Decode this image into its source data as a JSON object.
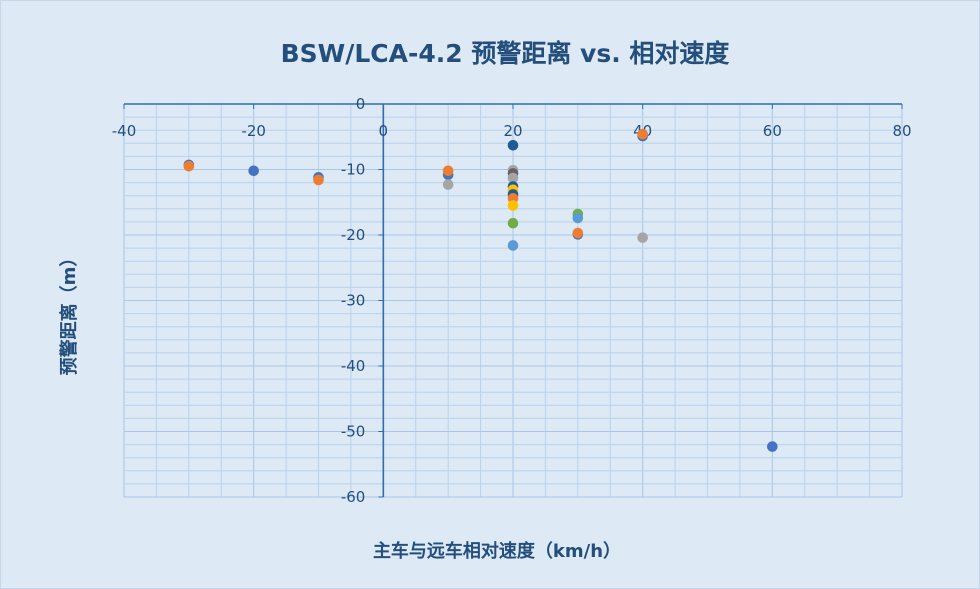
{
  "chart_data": {
    "type": "scatter",
    "title": "BSW/LCA-4.2 预警距离 vs. 相对速度",
    "xlabel": "主车与远车相对速度（km/h）",
    "ylabel": "预警距离（m）",
    "xlim": [
      -40,
      80
    ],
    "ylim": [
      -60,
      0
    ],
    "x_ticks": [
      "-40",
      "-20",
      "0",
      "20",
      "40",
      "60",
      "80"
    ],
    "y_ticks": [
      "0",
      "-10",
      "-20",
      "-30",
      "-40",
      "-50",
      "-60"
    ],
    "grid": true,
    "legend": "none",
    "colors": {
      "navy": "#1f5b95",
      "blue": "#4472c4",
      "orange": "#ed7d31",
      "gray": "#a5a5a5",
      "gold": "#ffc000",
      "lightblue": "#5b9bd5",
      "green": "#70ad47",
      "darkgray": "#636363"
    },
    "points": [
      {
        "x": -30,
        "y": -9.3,
        "color": "blue"
      },
      {
        "x": -30,
        "y": -9.5,
        "color": "orange"
      },
      {
        "x": -20,
        "y": -10.2,
        "color": "blue"
      },
      {
        "x": -10,
        "y": -11.2,
        "color": "blue"
      },
      {
        "x": -10,
        "y": -11.6,
        "color": "orange"
      },
      {
        "x": 10,
        "y": -10.8,
        "color": "blue"
      },
      {
        "x": 10,
        "y": -10.2,
        "color": "orange"
      },
      {
        "x": 10,
        "y": -12.3,
        "color": "gray"
      },
      {
        "x": 20,
        "y": -6.3,
        "color": "navy"
      },
      {
        "x": 20,
        "y": -10.1,
        "color": "gray"
      },
      {
        "x": 20,
        "y": -10.6,
        "color": "darkgray"
      },
      {
        "x": 20,
        "y": -11.3,
        "color": "gray"
      },
      {
        "x": 20,
        "y": -12.6,
        "color": "navy"
      },
      {
        "x": 20,
        "y": -13.1,
        "color": "gold"
      },
      {
        "x": 20,
        "y": -13.8,
        "color": "navy"
      },
      {
        "x": 20,
        "y": -14.4,
        "color": "orange"
      },
      {
        "x": 20,
        "y": -15.5,
        "color": "gold"
      },
      {
        "x": 20,
        "y": -18.2,
        "color": "green"
      },
      {
        "x": 20,
        "y": -21.6,
        "color": "lightblue"
      },
      {
        "x": 30,
        "y": -16.8,
        "color": "green"
      },
      {
        "x": 30,
        "y": -17.4,
        "color": "lightblue"
      },
      {
        "x": 30,
        "y": -19.9,
        "color": "blue"
      },
      {
        "x": 30,
        "y": -19.7,
        "color": "orange"
      },
      {
        "x": 40,
        "y": -4.9,
        "color": "blue"
      },
      {
        "x": 40,
        "y": -4.6,
        "color": "orange"
      },
      {
        "x": 40,
        "y": -20.4,
        "color": "gray"
      },
      {
        "x": 60,
        "y": -52.3,
        "color": "blue"
      }
    ]
  }
}
